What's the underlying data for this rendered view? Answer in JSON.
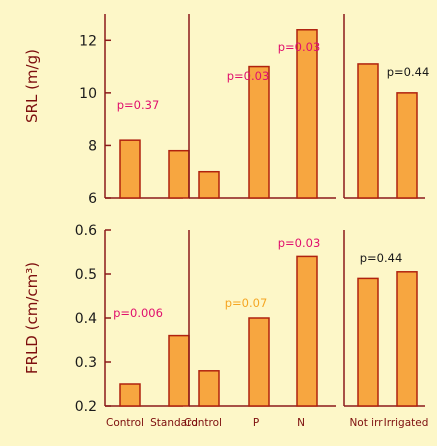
{
  "chart_data": [
    {
      "type": "bar",
      "ylabel": "SRL (m/g)",
      "ylim": [
        6,
        13
      ],
      "yticks": [
        6,
        8,
        10,
        12
      ],
      "categories": [
        "Control",
        "Standard"
      ],
      "values": [
        8.2,
        7.8
      ],
      "annotations": [
        {
          "text": "p=0.37",
          "color": "#e0106e"
        }
      ]
    },
    {
      "type": "bar",
      "ylim": [
        6,
        13
      ],
      "categories": [
        "Control",
        "P",
        "N"
      ],
      "values": [
        7.0,
        11.0,
        12.4
      ],
      "annotations": [
        {
          "text": "p=0.03",
          "color": "#e0106e"
        },
        {
          "text": "p=0.03",
          "color": "#e0106e"
        }
      ]
    },
    {
      "type": "bar",
      "ylim": [
        6,
        13
      ],
      "categories": [
        "Not irr",
        "Irrigated"
      ],
      "values": [
        11.1,
        10.0
      ],
      "annotations": [
        {
          "text": "p=0.44",
          "color": "#1a1a1a"
        }
      ]
    },
    {
      "type": "bar",
      "ylabel": "FRLD (cm/cm³)",
      "ylim": [
        0.2,
        0.6
      ],
      "yticks": [
        0.2,
        0.3,
        0.4,
        0.5,
        0.6
      ],
      "categories": [
        "Control",
        "Standard"
      ],
      "values": [
        0.25,
        0.36
      ],
      "annotations": [
        {
          "text": "p=0.006",
          "color": "#e0106e"
        }
      ]
    },
    {
      "type": "bar",
      "ylim": [
        0.2,
        0.6
      ],
      "categories": [
        "Control",
        "P",
        "N"
      ],
      "values": [
        0.28,
        0.4,
        0.54
      ],
      "annotations": [
        {
          "text": "p=0.07",
          "color": "#f5a623"
        },
        {
          "text": "p=0.03",
          "color": "#e0106e"
        }
      ]
    },
    {
      "type": "bar",
      "ylim": [
        0.2,
        0.6
      ],
      "categories": [
        "Not irr",
        "Irrigated"
      ],
      "values": [
        0.49,
        0.505
      ],
      "annotations": [
        {
          "text": "p=0.44",
          "color": "#1a1a1a"
        }
      ]
    }
  ]
}
